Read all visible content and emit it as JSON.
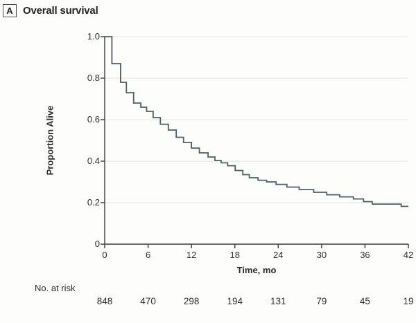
{
  "panel": {
    "letter": "A",
    "title": "Overall survival"
  },
  "chart_data": {
    "type": "line",
    "variant": "kaplan-meier-step",
    "title": "Overall survival",
    "xlabel": "Time, mo",
    "ylabel": "Proportion Alive",
    "xlim": [
      0,
      42
    ],
    "ylim": [
      0,
      1
    ],
    "x_ticks": [
      0,
      6,
      12,
      18,
      24,
      30,
      36,
      42
    ],
    "y_ticks": [
      1.0,
      0.8,
      0.6,
      0.4,
      0.2,
      0
    ],
    "y_tick_labels": [
      "1.0",
      "0.8",
      "0.6",
      "0.4",
      "0.2",
      "0"
    ],
    "grid": "horizontal",
    "legend": "none",
    "colors": {
      "line": "#4d6066",
      "grid": "#e2e2e2",
      "axis": "#3a3a3a",
      "text": "#2e2e2e"
    },
    "series": [
      {
        "name": "Overall survival",
        "steps": [
          [
            0,
            1.0
          ],
          [
            1,
            0.87
          ],
          [
            2.2,
            0.78
          ],
          [
            3,
            0.73
          ],
          [
            4,
            0.68
          ],
          [
            5,
            0.66
          ],
          [
            5.8,
            0.64
          ],
          [
            6.7,
            0.61
          ],
          [
            7.7,
            0.578
          ],
          [
            8.8,
            0.55
          ],
          [
            9.9,
            0.515
          ],
          [
            10.9,
            0.49
          ],
          [
            12,
            0.463
          ],
          [
            13.1,
            0.44
          ],
          [
            14.3,
            0.42
          ],
          [
            15.25,
            0.403
          ],
          [
            16.1,
            0.392
          ],
          [
            17,
            0.378
          ],
          [
            18.05,
            0.355
          ],
          [
            19.1,
            0.335
          ],
          [
            20,
            0.32
          ],
          [
            21.2,
            0.308
          ],
          [
            22.4,
            0.3
          ],
          [
            23.7,
            0.288
          ],
          [
            25.2,
            0.275
          ],
          [
            26.9,
            0.263
          ],
          [
            28.9,
            0.25
          ],
          [
            30.7,
            0.238
          ],
          [
            32.5,
            0.228
          ],
          [
            34.4,
            0.218
          ],
          [
            35.8,
            0.205
          ],
          [
            37,
            0.193
          ],
          [
            41,
            0.182
          ]
        ]
      }
    ]
  },
  "at_risk": {
    "label": "No. at risk",
    "values": [
      "848",
      "470",
      "298",
      "194",
      "131",
      "79",
      "45",
      "19"
    ]
  }
}
